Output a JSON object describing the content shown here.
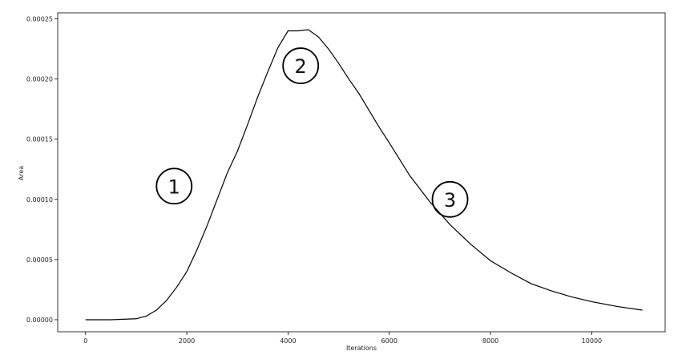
{
  "chart_data": {
    "type": "line",
    "title": "",
    "xlabel": "Iterations",
    "ylabel": "Area",
    "xlim": [
      -550,
      11450
    ],
    "ylim": [
      -1e-05,
      0.000255
    ],
    "x_ticks": [
      0,
      2000,
      4000,
      6000,
      8000,
      10000
    ],
    "x_tick_labels": [
      "0",
      "2000",
      "4000",
      "6000",
      "8000",
      "10000"
    ],
    "y_ticks": [
      0,
      5e-05,
      0.0001,
      0.00015,
      0.0002,
      0.00025
    ],
    "y_tick_labels": [
      "0.00000",
      "0.00005",
      "0.00010",
      "0.00015",
      "0.00020",
      "0.00025"
    ],
    "grid": false,
    "legend": "none",
    "line_color": "#000000",
    "series": [
      {
        "x": [
          0,
          500,
          1000,
          1200,
          1400,
          1600,
          1800,
          2000,
          2200,
          2400,
          2600,
          2800,
          3000,
          3200,
          3400,
          3600,
          3800,
          4000,
          4200,
          4400,
          4600,
          4800,
          5000,
          5200,
          5400,
          5600,
          5800,
          6000,
          6400,
          6800,
          7200,
          7600,
          8000,
          8400,
          8800,
          9200,
          9600,
          10000,
          10500,
          11000
        ],
        "y": [
          0,
          0,
          8e-07,
          3e-06,
          8e-06,
          1.6e-05,
          2.7e-05,
          4e-05,
          5.8e-05,
          7.8e-05,
          0.0001,
          0.000122,
          0.00014,
          0.000162,
          0.000185,
          0.000206,
          0.000226,
          0.00024,
          0.00024,
          0.000241,
          0.000235,
          0.000225,
          0.000213,
          0.0002,
          0.000188,
          0.000174,
          0.00016,
          0.000147,
          0.00012,
          9.8e-05,
          7.9e-05,
          6.3e-05,
          4.9e-05,
          3.9e-05,
          3e-05,
          2.4e-05,
          1.9e-05,
          1.5e-05,
          1.1e-05,
          8e-06
        ]
      }
    ],
    "annotations": [
      {
        "label": "1",
        "x": 1750,
        "y": 0.000111
      },
      {
        "label": "2",
        "x": 4250,
        "y": 0.000211
      },
      {
        "label": "3",
        "x": 7200,
        "y": 0.0001
      }
    ]
  }
}
